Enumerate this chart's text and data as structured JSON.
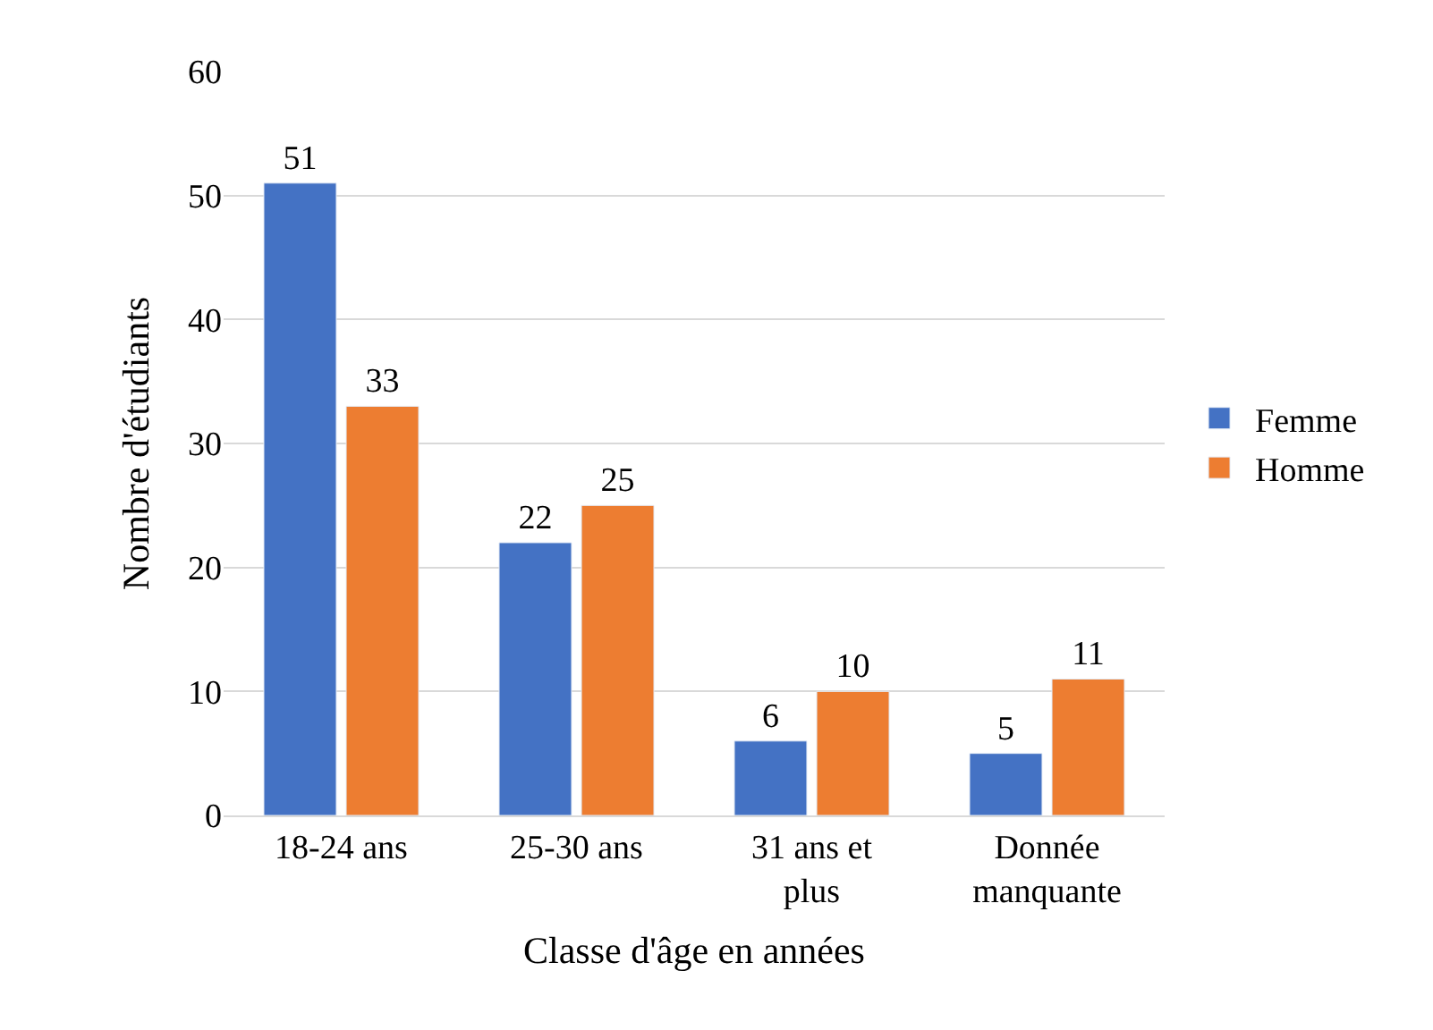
{
  "chart_data": {
    "type": "bar",
    "xlabel": "Classe d'âge en années",
    "ylabel": "Nombre d'étudiants",
    "categories": [
      "18-24 ans",
      "25-30 ans",
      "31 ans et plus",
      "Donnée manquante"
    ],
    "series": [
      {
        "name": "Femme",
        "color": "#4472c4",
        "values": [
          51,
          22,
          6,
          5
        ]
      },
      {
        "name": "Homme",
        "color": "#ed7d31",
        "values": [
          33,
          25,
          10,
          11
        ]
      }
    ],
    "ylim": [
      0,
      60
    ],
    "yticks": [
      0,
      10,
      20,
      30,
      40,
      50,
      60
    ],
    "grid": "y",
    "legend": "right",
    "data_labels": true
  }
}
